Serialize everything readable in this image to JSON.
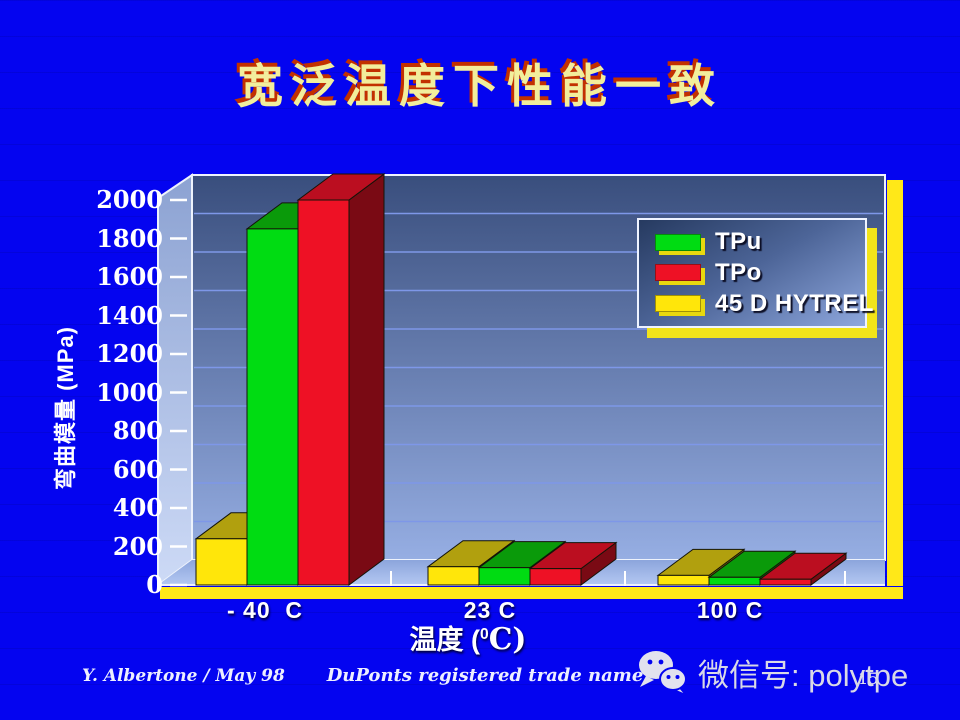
{
  "slide": {
    "title": "宽泛温度下性能一致",
    "footer_left": "Y. Albertone / May 98",
    "footer_center": "DuPonts registered trade name",
    "page_number": "15",
    "watermark_text": "微信号: polytpe",
    "watermark_icon": "wechat-icon"
  },
  "colors": {
    "background": "#0404F0",
    "title_text": "#F2EE9C",
    "title_shadow": "#C23000",
    "accent_yellow": "#FFE818",
    "gridline": "#7E97E8",
    "axis_text": "#FFFFFF",
    "legend_shadow": "#F2E41A",
    "wall_top": "#394E7D",
    "wall_bottom": "#96AEE3"
  },
  "chart_data": {
    "type": "bar",
    "projection": "3d",
    "title": "",
    "categories": [
      "- 40  C",
      "23 C",
      "100 C"
    ],
    "series": [
      {
        "name": "TPu",
        "color": "#00DC12",
        "top_color": "#0A9A0A",
        "side_color": "#067806",
        "values": [
          1850,
          90,
          40
        ]
      },
      {
        "name": "TPo",
        "color": "#EE1125",
        "top_color": "#BB0E20",
        "side_color": "#7A0A14",
        "values": [
          2000,
          85,
          30
        ]
      },
      {
        "name": "45 D HYTREL",
        "color": "#FFE60A",
        "top_color": "#B1A00E",
        "side_color": "#8A7D08",
        "values": [
          240,
          95,
          50
        ]
      }
    ],
    "ylabel": "弯曲模量 (MPa)",
    "xlabel_prefix": "温度 (",
    "xlabel_sup": "0",
    "xlabel_suffix": "C)",
    "ylim": [
      0,
      2000
    ],
    "ytick_step": 200,
    "yticks": [
      2000,
      1800,
      1600,
      1400,
      1200,
      1000,
      800,
      600,
      400,
      200,
      0
    ],
    "legend_position": "top-right",
    "grid": true
  }
}
